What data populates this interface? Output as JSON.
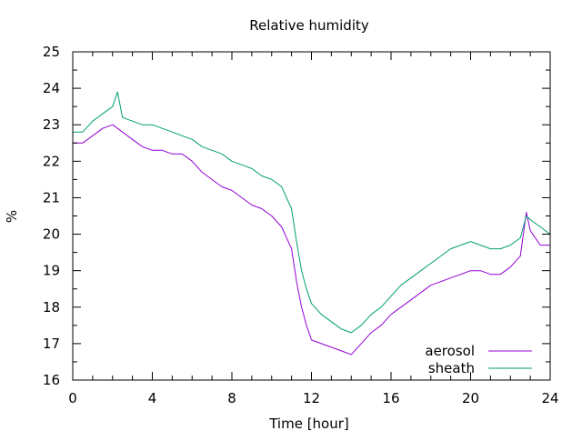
{
  "chart_data": {
    "type": "line",
    "title": "Relative humidity",
    "xlabel": "Time [hour]",
    "ylabel": "%",
    "xlim": [
      0,
      24
    ],
    "ylim": [
      16,
      25
    ],
    "xticks": [
      0,
      4,
      8,
      12,
      16,
      20,
      24
    ],
    "yticks": [
      16,
      17,
      18,
      19,
      20,
      21,
      22,
      23,
      24,
      25
    ],
    "grid": false,
    "legend_position": "bottom-right",
    "series": [
      {
        "name": "aerosol",
        "color": "#9400d3",
        "x": [
          0,
          0.5,
          1,
          1.5,
          2,
          2.5,
          3,
          3.5,
          4,
          4.5,
          5,
          5.5,
          6,
          6.5,
          7,
          7.5,
          8,
          8.5,
          9,
          9.5,
          10,
          10.5,
          11,
          11.25,
          11.5,
          11.75,
          12,
          12.5,
          13,
          13.5,
          14,
          14.5,
          15,
          15.5,
          16,
          16.5,
          17,
          17.5,
          18,
          18.5,
          19,
          19.5,
          20,
          20.5,
          21,
          21.5,
          22,
          22.5,
          22.8,
          23,
          23.5,
          24
        ],
        "y": [
          22.5,
          22.5,
          22.7,
          22.9,
          23.0,
          22.8,
          22.6,
          22.4,
          22.3,
          22.3,
          22.2,
          22.2,
          22.0,
          21.7,
          21.5,
          21.3,
          21.2,
          21.0,
          20.8,
          20.7,
          20.5,
          20.2,
          19.6,
          18.7,
          18.0,
          17.5,
          17.1,
          17.0,
          16.9,
          16.8,
          16.7,
          17.0,
          17.3,
          17.5,
          17.8,
          18.0,
          18.2,
          18.4,
          18.6,
          18.7,
          18.8,
          18.9,
          19.0,
          19.0,
          18.9,
          18.9,
          19.1,
          19.4,
          20.6,
          20.1,
          19.7,
          19.7
        ]
      },
      {
        "name": "sheath",
        "color": "#009e73",
        "x": [
          0,
          0.5,
          1,
          1.5,
          2,
          2.25,
          2.5,
          3,
          3.5,
          4,
          4.5,
          5,
          5.5,
          6,
          6.5,
          7,
          7.5,
          8,
          8.5,
          9,
          9.5,
          10,
          10.5,
          11,
          11.25,
          11.5,
          11.75,
          12,
          12.5,
          13,
          13.5,
          14,
          14.5,
          15,
          15.5,
          16,
          16.5,
          17,
          17.5,
          18,
          18.5,
          19,
          19.5,
          20,
          20.5,
          21,
          21.5,
          22,
          22.5,
          22.8,
          23,
          23.5,
          24
        ],
        "y": [
          22.8,
          22.8,
          23.1,
          23.3,
          23.5,
          23.9,
          23.2,
          23.1,
          23.0,
          23.0,
          22.9,
          22.8,
          22.7,
          22.6,
          22.4,
          22.3,
          22.2,
          22.0,
          21.9,
          21.8,
          21.6,
          21.5,
          21.3,
          20.7,
          19.8,
          19.0,
          18.5,
          18.1,
          17.8,
          17.6,
          17.4,
          17.3,
          17.5,
          17.8,
          18.0,
          18.3,
          18.6,
          18.8,
          19.0,
          19.2,
          19.4,
          19.6,
          19.7,
          19.8,
          19.7,
          19.6,
          19.6,
          19.7,
          19.9,
          20.5,
          20.4,
          20.2,
          20.0
        ]
      }
    ]
  }
}
